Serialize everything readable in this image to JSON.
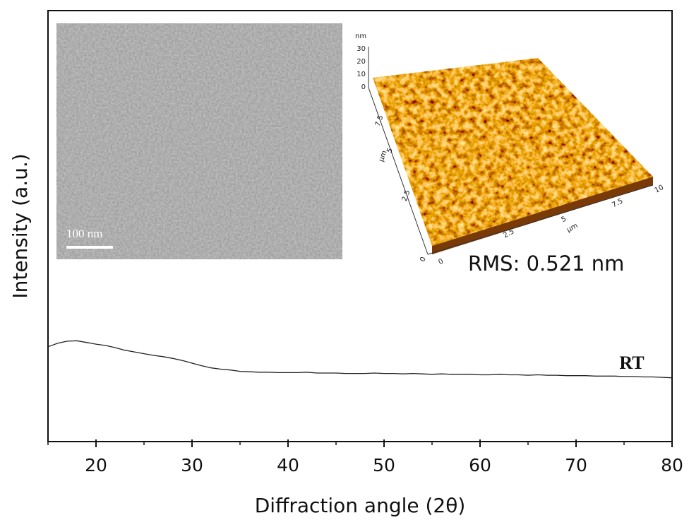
{
  "chart_data": {
    "type": "line",
    "x_label": "Diffraction angle (2θ)",
    "y_label": "Intensity (a.u.)",
    "x": [
      15,
      16,
      17,
      18,
      19,
      20,
      21,
      22,
      23,
      24,
      25,
      26,
      27,
      28,
      29,
      30,
      31,
      32,
      33,
      34,
      35,
      36,
      37,
      38,
      39,
      40,
      41,
      42,
      43,
      44,
      45,
      46,
      47,
      48,
      49,
      50,
      51,
      52,
      53,
      54,
      55,
      56,
      57,
      58,
      59,
      60,
      61,
      62,
      63,
      64,
      65,
      66,
      67,
      68,
      69,
      70,
      71,
      72,
      73,
      74,
      75,
      76,
      77,
      78,
      79,
      80
    ],
    "series": [
      {
        "name": "RT",
        "color": "#222222",
        "values": [
          22.0,
          22.8,
          23.3,
          23.4,
          23.0,
          22.6,
          22.3,
          21.8,
          21.2,
          20.8,
          20.4,
          20.0,
          19.7,
          19.3,
          18.8,
          18.2,
          17.6,
          17.1,
          16.8,
          16.6,
          16.3,
          16.2,
          16.1,
          16.1,
          16.0,
          16.0,
          16.0,
          16.1,
          15.9,
          15.9,
          15.9,
          15.8,
          15.8,
          15.8,
          15.9,
          15.8,
          15.8,
          15.7,
          15.8,
          15.7,
          15.6,
          15.7,
          15.6,
          15.6,
          15.6,
          15.5,
          15.5,
          15.6,
          15.5,
          15.5,
          15.4,
          15.5,
          15.4,
          15.4,
          15.3,
          15.3,
          15.3,
          15.2,
          15.2,
          15.2,
          15.1,
          15.1,
          15.0,
          15.0,
          14.9,
          14.8
        ]
      }
    ],
    "xlim": [
      15,
      80
    ],
    "xticks": [
      20,
      30,
      40,
      50,
      60,
      70,
      80
    ],
    "xminorticks": [
      15,
      25,
      35,
      45,
      55,
      65,
      75
    ],
    "ylim": [
      0,
      100
    ],
    "insets": {
      "sem": {
        "scale_bar": "100 nm"
      },
      "afm": {
        "rms": "RMS: 0.521 nm",
        "z_unit": "nm",
        "z_ticks": [
          30,
          20,
          10,
          0
        ],
        "y_unit": "µm",
        "y_ticks": [
          7.5,
          5,
          2.5,
          0
        ],
        "x_unit": "µm",
        "x_ticks": [
          0,
          2.5,
          5,
          7.5,
          10
        ]
      }
    }
  }
}
